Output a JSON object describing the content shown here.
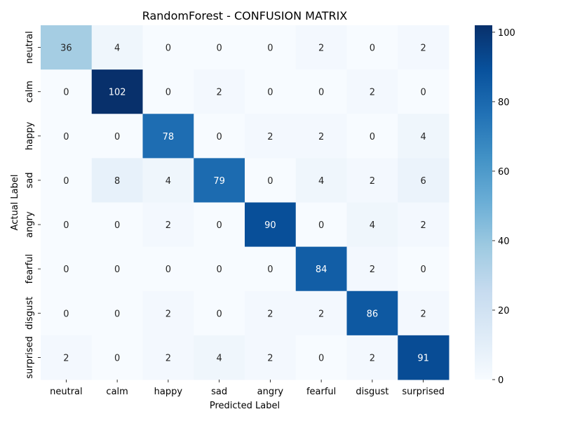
{
  "chart_data": {
    "type": "heatmap",
    "title": "RandomForest - CONFUSION MATRIX",
    "xlabel": "Predicted Label",
    "ylabel": "Actual Label",
    "x_categories": [
      "neutral",
      "calm",
      "happy",
      "sad",
      "angry",
      "fearful",
      "disgust",
      "surprised"
    ],
    "y_categories": [
      "neutral",
      "calm",
      "happy",
      "sad",
      "angry",
      "fearful",
      "disgust",
      "surprised"
    ],
    "values": [
      [
        36,
        4,
        0,
        0,
        0,
        2,
        0,
        2
      ],
      [
        0,
        102,
        0,
        2,
        0,
        0,
        2,
        0
      ],
      [
        0,
        0,
        78,
        0,
        2,
        2,
        0,
        4
      ],
      [
        0,
        8,
        4,
        79,
        0,
        4,
        2,
        6
      ],
      [
        0,
        0,
        2,
        0,
        90,
        0,
        4,
        2
      ],
      [
        0,
        0,
        0,
        0,
        0,
        84,
        2,
        0
      ],
      [
        0,
        0,
        2,
        0,
        2,
        2,
        86,
        2
      ],
      [
        2,
        0,
        2,
        4,
        2,
        0,
        2,
        91
      ]
    ],
    "colormap": "Blues",
    "colorbar": {
      "range": [
        0,
        102
      ],
      "ticks": [
        "0",
        "20",
        "40",
        "60",
        "80",
        "100"
      ]
    },
    "annotate_cells": true
  }
}
